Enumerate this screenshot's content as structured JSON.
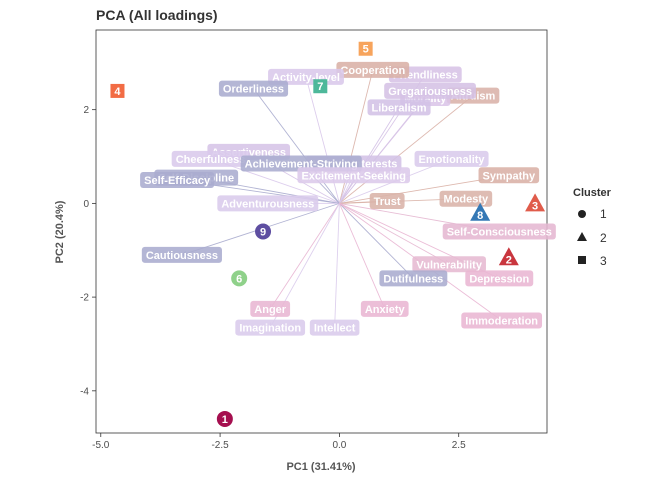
{
  "chart_data": {
    "type": "scatter",
    "title": "PCA (All loadings)",
    "xlabel": "PC1 (31.41%)",
    "ylabel": "PC2 (20.4%)",
    "xlim": [
      -5.1,
      4.35
    ],
    "ylim": [
      -4.9,
      3.7
    ],
    "x_ticks": [
      -5.0,
      -2.5,
      0.0,
      2.5
    ],
    "x_tick_labels": [
      "-5.0",
      "-2.5",
      "0.0",
      "2.5"
    ],
    "y_ticks": [
      -4,
      -2,
      0,
      2
    ],
    "y_tick_labels": [
      "-4",
      "-2",
      "0",
      "2"
    ],
    "grid": false,
    "legend": {
      "title": "Cluster",
      "placement": "right",
      "entries": [
        {
          "label": "1",
          "shape": "circle"
        },
        {
          "label": "2",
          "shape": "triangle"
        },
        {
          "label": "3",
          "shape": "square"
        }
      ]
    },
    "points": [
      {
        "label": "1",
        "x": -2.4,
        "y": -4.6,
        "cluster": "1",
        "color": "#a50f4f"
      },
      {
        "label": "6",
        "x": -2.1,
        "y": -1.6,
        "cluster": "1",
        "color": "#8fd18a"
      },
      {
        "label": "9",
        "x": -1.6,
        "y": -0.6,
        "cluster": "1",
        "color": "#5e4ea1"
      },
      {
        "label": "2",
        "x": 3.55,
        "y": -1.15,
        "cluster": "2",
        "color": "#c9363e"
      },
      {
        "label": "3",
        "x": 4.1,
        "y": 0.0,
        "cluster": "2",
        "color": "#e05c4b"
      },
      {
        "label": "8",
        "x": 2.95,
        "y": -0.2,
        "cluster": "2",
        "color": "#3478b5"
      },
      {
        "label": "4",
        "x": -4.65,
        "y": 2.4,
        "cluster": "3",
        "color": "#f26c44"
      },
      {
        "label": "5",
        "x": 0.55,
        "y": 3.3,
        "cluster": "3",
        "color": "#f7a45c"
      },
      {
        "label": "7",
        "x": -0.4,
        "y": 2.5,
        "cluster": "3",
        "color": "#4db89a"
      }
    ],
    "loadings": [
      {
        "label": "Friendliness",
        "x": 1.8,
        "y": 2.75,
        "color": "#d7c3e6"
      },
      {
        "label": "Cooperation",
        "x": 0.7,
        "y": 2.85,
        "color": "#d9b1a6"
      },
      {
        "label": "Activity-level",
        "x": -0.7,
        "y": 2.7,
        "color": "#d9c8ea"
      },
      {
        "label": "Orderliness",
        "x": -1.8,
        "y": 2.45,
        "color": "#aaaccf"
      },
      {
        "label": "Altruism",
        "x": 2.8,
        "y": 2.3,
        "color": "#dab2a8"
      },
      {
        "label": "Morality",
        "x": 1.8,
        "y": 2.25,
        "color": "#dbc5e8"
      },
      {
        "label": "Gregariousness",
        "x": 1.9,
        "y": 2.4,
        "color": "#d5c2e5"
      },
      {
        "label": "Liberalism",
        "x": 1.25,
        "y": 2.05,
        "color": "#d3c1e6"
      },
      {
        "label": "Assertiveness",
        "x": -1.9,
        "y": 1.1,
        "color": "#d6c4e7"
      },
      {
        "label": "Cheerfulness",
        "x": -2.7,
        "y": 0.95,
        "color": "#dac9ec"
      },
      {
        "label": "Artistic-Interests",
        "x": 0.3,
        "y": 0.85,
        "color": "#d3c1e6"
      },
      {
        "label": "Emotionality",
        "x": 2.35,
        "y": 0.95,
        "color": "#dacbec"
      },
      {
        "label": "Achievement-Striving",
        "x": -0.8,
        "y": 0.85,
        "color": "#aaaccf"
      },
      {
        "label": "Excitement-Seeking",
        "x": 0.3,
        "y": 0.6,
        "color": "#dccaeb"
      },
      {
        "label": "Self-Discipline",
        "x": -3.0,
        "y": 0.55,
        "color": "#aaaccf"
      },
      {
        "label": "Self-Efficacy",
        "x": -3.4,
        "y": 0.5,
        "color": "#aaaccf"
      },
      {
        "label": "Sympathy",
        "x": 3.55,
        "y": 0.6,
        "color": "#dab1a6"
      },
      {
        "label": "Modesty",
        "x": 2.65,
        "y": 0.1,
        "color": "#dab3a8"
      },
      {
        "label": "Trust",
        "x": 1.0,
        "y": 0.05,
        "color": "#dab3a8"
      },
      {
        "label": "Adventurousness",
        "x": -1.5,
        "y": 0.0,
        "color": "#dacbec"
      },
      {
        "label": "Self-Consciousness",
        "x": 3.35,
        "y": -0.6,
        "color": "#e5b7d1"
      },
      {
        "label": "Cautiousness",
        "x": -3.3,
        "y": -1.1,
        "color": "#aaaccf"
      },
      {
        "label": "Vulnerability",
        "x": 2.3,
        "y": -1.3,
        "color": "#e6b9d2"
      },
      {
        "label": "Depression",
        "x": 3.35,
        "y": -1.6,
        "color": "#e9b6d3"
      },
      {
        "label": "Dutifulness",
        "x": 1.55,
        "y": -1.6,
        "color": "#aaaccf"
      },
      {
        "label": "Anger",
        "x": -1.45,
        "y": -2.25,
        "color": "#e8b6d3"
      },
      {
        "label": "Anxiety",
        "x": 0.95,
        "y": -2.25,
        "color": "#e9b6d3"
      },
      {
        "label": "Imagination",
        "x": -1.45,
        "y": -2.65,
        "color": "#dacbec"
      },
      {
        "label": "Intellect",
        "x": -0.1,
        "y": -2.65,
        "color": "#dacbec"
      },
      {
        "label": "Immoderation",
        "x": 3.4,
        "y": -2.5,
        "color": "#e9b6d3"
      }
    ]
  }
}
